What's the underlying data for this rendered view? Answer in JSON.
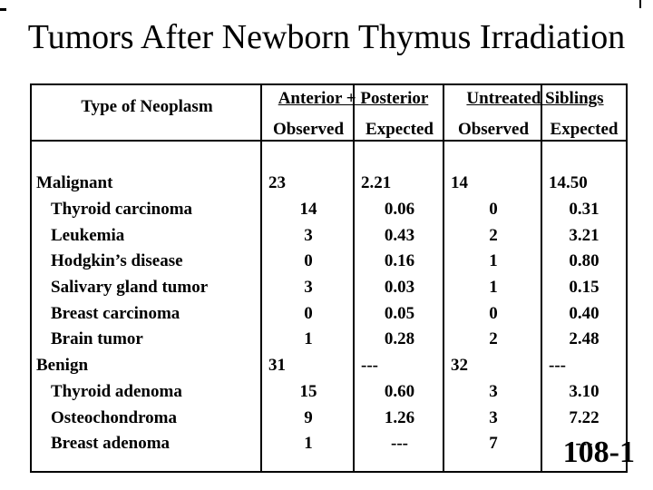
{
  "title": "Tumors After Newborn Thymus Irradiation",
  "slide_number": "108-1",
  "table": {
    "col1_header": "Type of Neoplasm",
    "group_headers": [
      "Anterior + Posterior",
      "Untreated Siblings"
    ],
    "sub_headers": [
      "Observed",
      "Expected",
      "Observed",
      "Expected"
    ],
    "rows": [
      {
        "label": "Malignant",
        "indent": false,
        "values": [
          "23",
          "2.21",
          "14",
          "14.50"
        ]
      },
      {
        "label": "Thyroid carcinoma",
        "indent": true,
        "values": [
          "14",
          "0.06",
          "0",
          "0.31"
        ]
      },
      {
        "label": "Leukemia",
        "indent": true,
        "values": [
          "3",
          "0.43",
          "2",
          "3.21"
        ]
      },
      {
        "label": "Hodgkin’s disease",
        "indent": true,
        "values": [
          "0",
          "0.16",
          "1",
          "0.80"
        ]
      },
      {
        "label": "Salivary gland tumor",
        "indent": true,
        "values": [
          "3",
          "0.03",
          "1",
          "0.15"
        ]
      },
      {
        "label": "Breast carcinoma",
        "indent": true,
        "values": [
          "0",
          "0.05",
          "0",
          "0.40"
        ]
      },
      {
        "label": "Brain tumor",
        "indent": true,
        "values": [
          "1",
          "0.28",
          "2",
          "2.48"
        ]
      },
      {
        "label": "Benign",
        "indent": false,
        "values": [
          "31",
          "---",
          "32",
          "---"
        ]
      },
      {
        "label": "Thyroid adenoma",
        "indent": true,
        "values": [
          "15",
          "0.60",
          "3",
          "3.10"
        ]
      },
      {
        "label": "Osteochondroma",
        "indent": true,
        "values": [
          "9",
          "1.26",
          "3",
          "7.22"
        ]
      },
      {
        "label": "Breast adenoma",
        "indent": true,
        "values": [
          "1",
          "---",
          "7",
          "---"
        ]
      }
    ]
  }
}
